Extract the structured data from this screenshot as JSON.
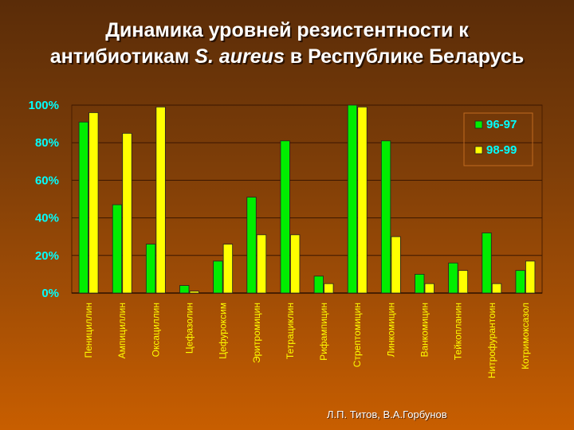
{
  "title": {
    "line1": "Динамика уровней резистентности к",
    "line2_pre": "антибиотикам ",
    "line2_italic": "S. aureus",
    "line2_post": " в Республике Беларусь"
  },
  "footer": "Л.П. Титов, В.А.Горбунов",
  "colors": {
    "series_96_97": "#00ee00",
    "series_98_99": "#ffff00",
    "axis_text": "#00ffff",
    "category_text": "#ffff00",
    "grid": "#3a1600"
  },
  "chart_data": {
    "type": "bar",
    "title": "Динамика уровней резистентности к антибиотикам S. aureus в Республике Беларусь",
    "categories": [
      "Пенициллин",
      "Ампициллин",
      "Оксациллин",
      "Цефазолин",
      "Цефуроксим",
      "Эритромицин",
      "Тетрациклин",
      "Рифампицин",
      "Стрептомицин",
      "Линкомицин",
      "Ванкомицин",
      "Тейкопланин",
      "Нитрофурантоин",
      "Котримоксазол"
    ],
    "series": [
      {
        "name": "96-97",
        "values": [
          91,
          47,
          26,
          4,
          17,
          51,
          81,
          9,
          100,
          81,
          10,
          16,
          32,
          12
        ]
      },
      {
        "name": "98-99",
        "values": [
          96,
          85,
          99,
          1,
          26,
          31,
          31,
          5,
          99,
          30,
          5,
          12,
          5,
          17
        ]
      }
    ],
    "ylim": [
      0,
      100
    ],
    "yticks": [
      "0%",
      "20%",
      "40%",
      "60%",
      "80%",
      "100%"
    ],
    "xlabel": "",
    "ylabel": "",
    "grid": true,
    "legend": "top-right"
  }
}
